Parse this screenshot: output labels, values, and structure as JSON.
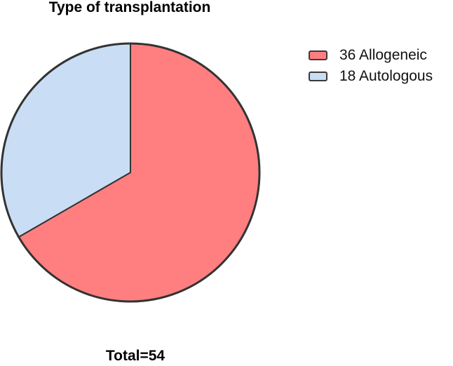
{
  "chart_data": {
    "type": "pie",
    "title": "Type of transplantation",
    "footer": "Total=54",
    "slices": [
      {
        "label": "Allogeneic",
        "value": 36,
        "color": "#ff7f80"
      },
      {
        "label": "Autologous",
        "value": 18,
        "color": "#c9ddf5"
      }
    ],
    "legend": {
      "placement": "top-right",
      "items": [
        "36 Allogeneic",
        "18 Autologous"
      ]
    },
    "outline_color": "#333333",
    "start_angle": "12 o'clock",
    "direction": "clockwise"
  }
}
